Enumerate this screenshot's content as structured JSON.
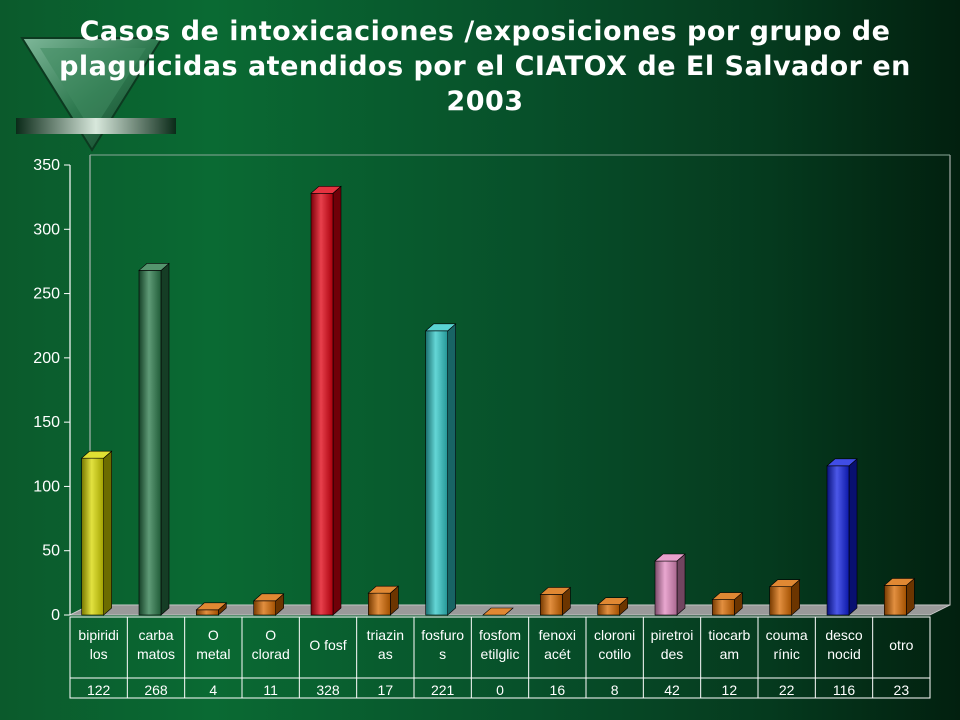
{
  "page": {
    "title": "Casos de intoxicaciones /exposiciones por grupo de plaguicidas atendidos por el CIATOX de El Salvador en 2003"
  },
  "chart_data": {
    "type": "bar",
    "title": "Casos de intoxicaciones /exposiciones por grupo de plaguicidas atendidos por el CIATOX de El Salvador en 2003",
    "xlabel": "",
    "ylabel": "",
    "ylim": [
      0,
      350
    ],
    "yticks": [
      0,
      50,
      100,
      150,
      200,
      250,
      300,
      350
    ],
    "grid": false,
    "legend": "none",
    "data_table": true,
    "categories": [
      [
        "bipiridi",
        "los"
      ],
      [
        "carba",
        "matos"
      ],
      [
        "O",
        "metal"
      ],
      [
        "O",
        "clorad"
      ],
      [
        "O fosf"
      ],
      [
        "triazin",
        "as"
      ],
      [
        "fosfuro",
        "s"
      ],
      [
        "fosfom",
        "etilglic"
      ],
      [
        "fenoxi",
        "acét"
      ],
      [
        "cloroni",
        "cotilo"
      ],
      [
        "piretroi",
        "des"
      ],
      [
        "tiocarb",
        "am"
      ],
      [
        "couma",
        "rínic"
      ],
      [
        "desco",
        "nocid"
      ],
      [
        "otro"
      ]
    ],
    "values": [
      122,
      268,
      4,
      11,
      328,
      17,
      221,
      0,
      16,
      8,
      42,
      12,
      22,
      116,
      23
    ],
    "colors": [
      "#d8d800",
      "#2a7a4a",
      "#d86a00",
      "#d86a00",
      "#e00010",
      "#d86a00",
      "#30c8c8",
      "#d86a00",
      "#d86a00",
      "#d86a00",
      "#e28ac0",
      "#d86a00",
      "#d86a00",
      "#1020e0",
      "#d86a00"
    ]
  }
}
